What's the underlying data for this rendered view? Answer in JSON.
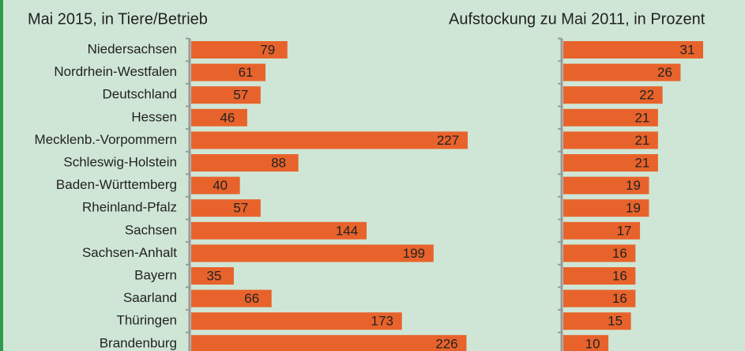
{
  "chart_data": [
    {
      "type": "bar",
      "orientation": "horizontal",
      "title": "Mai 2015, in Tiere/Betrieb",
      "categories": [
        "Niedersachsen",
        "Nordrhein-Westfalen",
        "Deutschland",
        "Hessen",
        "Mecklenb.-Vorpommern",
        "Schleswig-Holstein",
        "Baden-Württemberg",
        "Rheinland-Pfalz",
        "Sachsen",
        "Sachsen-Anhalt",
        "Bayern",
        "Saarland",
        "Thüringen",
        "Brandenburg"
      ],
      "values": [
        79,
        61,
        57,
        46,
        227,
        88,
        40,
        57,
        144,
        199,
        35,
        66,
        173,
        226
      ],
      "color": "#e8632b"
    },
    {
      "type": "bar",
      "orientation": "horizontal",
      "title": "Aufstockung zu Mai 2011, in Prozent",
      "values": [
        31,
        26,
        22,
        21,
        21,
        21,
        19,
        19,
        17,
        16,
        16,
        16,
        15,
        10
      ],
      "color": "#e8632b"
    }
  ]
}
